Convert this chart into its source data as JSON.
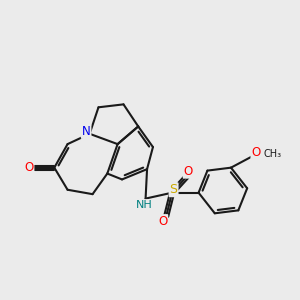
{
  "bg_color": "#ebebeb",
  "bond_color": "#1a1a1a",
  "bond_width": 1.5,
  "atom_colors": {
    "N": "#0000ee",
    "O": "#ff0000",
    "S": "#ccaa00",
    "NH": "#008080"
  },
  "figsize": [
    3.0,
    3.0
  ],
  "dpi": 100
}
